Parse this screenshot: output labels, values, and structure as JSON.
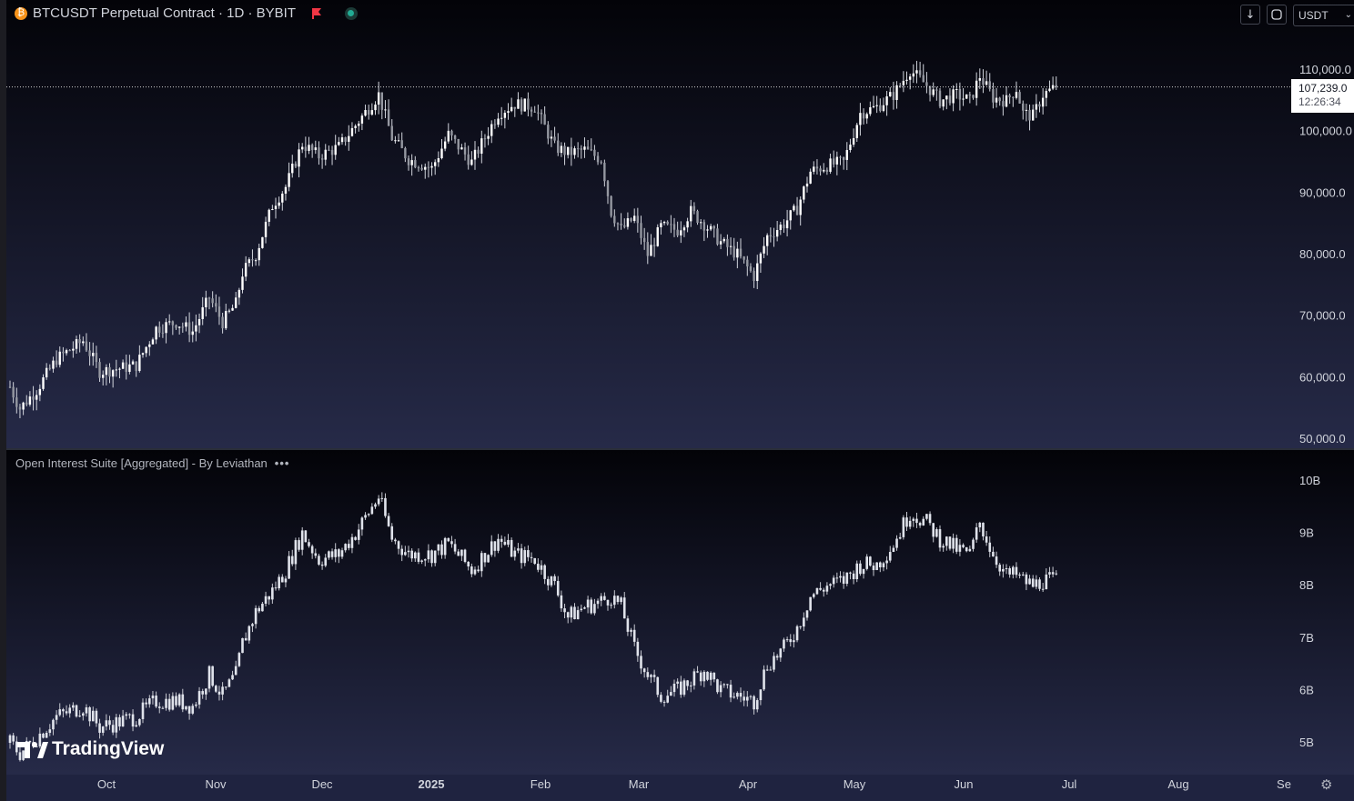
{
  "header": {
    "title": "BTCUSDT Perpetual Contract · 1D · BYBIT",
    "currency": "USDT",
    "icons": [
      "bitcoin-icon",
      "flag-icon",
      "market-open-icon"
    ]
  },
  "toolbar": {
    "download_icon": "↓",
    "fullscreen_icon": "⛶"
  },
  "last_price": {
    "value": "107,239.0",
    "countdown": "12:26:34"
  },
  "indicator": {
    "label": "Open Interest Suite [Aggregated] - By Leviathan",
    "more": "•••"
  },
  "watermark": {
    "text": "TradingView"
  },
  "colors": {
    "candle": "#d1d4dc",
    "bg_top": "#040409",
    "bg_bottom": "#232743",
    "text": "#d1d4dc"
  },
  "chart_data": [
    {
      "type": "candlestick",
      "title": "BTCUSDT Perpetual Contract · 1D · BYBIT",
      "ylim": [
        48000,
        114000
      ],
      "y_ticks": [
        50000,
        60000,
        70000,
        80000,
        90000,
        100000,
        110000
      ],
      "y_tick_labels": [
        "50,000.0",
        "60,000.0",
        "70,000.0",
        "80,000.0",
        "90,000.0",
        "100,000.0",
        "110,000.0"
      ],
      "last_price": 107239,
      "x_ticks": [
        "Oct",
        "Nov",
        "Dec",
        "2025",
        "Feb",
        "Mar",
        "Apr",
        "May",
        "Jun",
        "Jul",
        "Aug",
        "Se"
      ],
      "anchors": [
        [
          0,
          58500
        ],
        [
          3,
          55000
        ],
        [
          8,
          58000
        ],
        [
          14,
          63000
        ],
        [
          22,
          66000
        ],
        [
          27,
          61000
        ],
        [
          33,
          61500
        ],
        [
          38,
          62000
        ],
        [
          44,
          68000
        ],
        [
          50,
          69000
        ],
        [
          55,
          67500
        ],
        [
          60,
          73000
        ],
        [
          64,
          69000
        ],
        [
          68,
          72000
        ],
        [
          70,
          77000
        ],
        [
          74,
          80000
        ],
        [
          79,
          88000
        ],
        [
          83,
          91000
        ],
        [
          88,
          98000
        ],
        [
          93,
          96000
        ],
        [
          99,
          97500
        ],
        [
          104,
          101000
        ],
        [
          111,
          106000
        ],
        [
          115,
          99000
        ],
        [
          120,
          95500
        ],
        [
          127,
          94000
        ],
        [
          132,
          99500
        ],
        [
          139,
          95000
        ],
        [
          147,
          103000
        ],
        [
          152,
          104500
        ],
        [
          158,
          104000
        ],
        [
          164,
          97500
        ],
        [
          168,
          96500
        ],
        [
          173,
          97000
        ],
        [
          178,
          95500
        ],
        [
          181,
          87000
        ],
        [
          184,
          84000
        ],
        [
          188,
          86000
        ],
        [
          192,
          80000
        ],
        [
          196,
          84500
        ],
        [
          201,
          84000
        ],
        [
          205,
          87000
        ],
        [
          209,
          85000
        ],
        [
          214,
          82000
        ],
        [
          219,
          80000
        ],
        [
          224,
          76500
        ],
        [
          228,
          83000
        ],
        [
          233,
          85000
        ],
        [
          237,
          87500
        ],
        [
          241,
          93500
        ],
        [
          246,
          94500
        ],
        [
          251,
          95000
        ],
        [
          256,
          103000
        ],
        [
          261,
          104000
        ],
        [
          266,
          106000
        ],
        [
          271,
          110000
        ],
        [
          276,
          107500
        ],
        [
          280,
          105000
        ],
        [
          285,
          106000
        ],
        [
          289,
          105000
        ],
        [
          292,
          109000
        ],
        [
          296,
          105500
        ],
        [
          300,
          105000
        ],
        [
          303,
          107000
        ],
        [
          305,
          103000
        ],
        [
          308,
          102500
        ],
        [
          311,
          106000
        ],
        [
          315,
          107239
        ]
      ]
    },
    {
      "type": "bar",
      "title": "Open Interest Suite [Aggregated] - By Leviathan",
      "ylim": [
        4.6,
        10.8
      ],
      "y_ticks": [
        5,
        6,
        7,
        8,
        9,
        10
      ],
      "y_tick_labels": [
        "5B",
        "6B",
        "7B",
        "8B",
        "9B",
        "10B"
      ],
      "unit": "B",
      "anchors": [
        [
          0,
          5.0
        ],
        [
          3,
          4.8
        ],
        [
          8,
          5.1
        ],
        [
          14,
          5.5
        ],
        [
          22,
          5.7
        ],
        [
          27,
          5.3
        ],
        [
          33,
          5.4
        ],
        [
          38,
          5.5
        ],
        [
          44,
          5.8
        ],
        [
          50,
          5.8
        ],
        [
          55,
          5.7
        ],
        [
          60,
          6.3
        ],
        [
          64,
          5.9
        ],
        [
          68,
          6.3
        ],
        [
          70,
          6.9
        ],
        [
          74,
          7.5
        ],
        [
          79,
          7.9
        ],
        [
          83,
          8.3
        ],
        [
          88,
          9.0
        ],
        [
          93,
          8.5
        ],
        [
          99,
          8.6
        ],
        [
          104,
          9.0
        ],
        [
          111,
          9.7
        ],
        [
          115,
          8.9
        ],
        [
          120,
          8.6
        ],
        [
          127,
          8.6
        ],
        [
          132,
          8.8
        ],
        [
          139,
          8.3
        ],
        [
          147,
          8.9
        ],
        [
          152,
          8.6
        ],
        [
          158,
          8.5
        ],
        [
          164,
          8.0
        ],
        [
          168,
          7.4
        ],
        [
          173,
          7.6
        ],
        [
          178,
          7.7
        ],
        [
          181,
          7.8
        ],
        [
          184,
          7.6
        ],
        [
          188,
          6.8
        ],
        [
          192,
          6.3
        ],
        [
          196,
          5.9
        ],
        [
          201,
          6.0
        ],
        [
          205,
          6.2
        ],
        [
          209,
          6.4
        ],
        [
          214,
          6.0
        ],
        [
          219,
          5.9
        ],
        [
          224,
          5.8
        ],
        [
          228,
          6.5
        ],
        [
          233,
          6.8
        ],
        [
          237,
          7.2
        ],
        [
          241,
          7.8
        ],
        [
          246,
          8.0
        ],
        [
          251,
          8.1
        ],
        [
          256,
          8.4
        ],
        [
          261,
          8.4
        ],
        [
          266,
          8.8
        ],
        [
          271,
          9.4
        ],
        [
          276,
          9.2
        ],
        [
          280,
          8.9
        ],
        [
          285,
          8.7
        ],
        [
          289,
          8.6
        ],
        [
          292,
          9.2
        ],
        [
          296,
          8.6
        ],
        [
          300,
          8.2
        ],
        [
          303,
          8.2
        ],
        [
          305,
          8.1
        ],
        [
          308,
          8.0
        ],
        [
          311,
          8.1
        ],
        [
          315,
          8.1
        ]
      ]
    }
  ]
}
